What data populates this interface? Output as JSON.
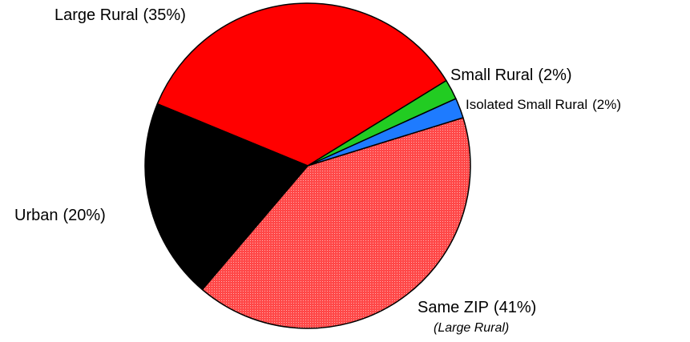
{
  "chart_data": {
    "type": "pie",
    "categories": [
      "Large Rural",
      "Small Rural",
      "Isolated Small Rural",
      "Same ZIP",
      "Urban"
    ],
    "values": [
      35,
      2,
      2,
      41,
      20
    ],
    "value_labels": [
      "(35%)",
      "(2%)",
      "(2%)",
      "(41%)",
      "(20%)"
    ],
    "colors": [
      "#ff0000",
      "#22cc22",
      "#1e7bff",
      "#ff4848",
      "#000000"
    ],
    "annotation": "(Large Rural)"
  }
}
